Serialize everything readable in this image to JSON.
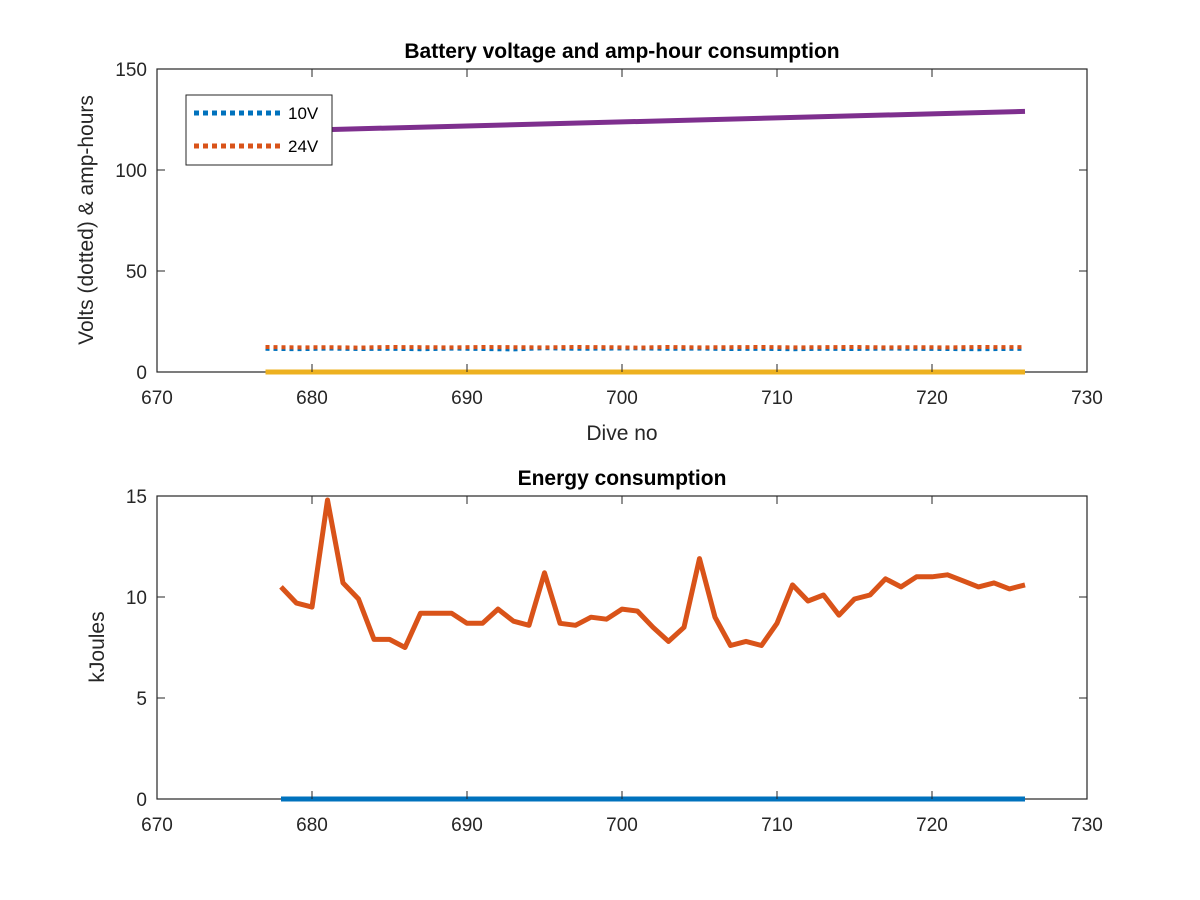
{
  "chart_data": [
    {
      "type": "line",
      "title": "Battery voltage and amp-hour consumption",
      "xlabel": "Dive no",
      "ylabel": "Volts (dotted) & amp-hours",
      "xlim": [
        670,
        730
      ],
      "ylim": [
        0,
        150
      ],
      "xticks": [
        "670",
        "680",
        "690",
        "700",
        "710",
        "720",
        "730"
      ],
      "yticks": [
        "0",
        "50",
        "100",
        "150"
      ],
      "grid": false,
      "legend_position": "top-left",
      "series": [
        {
          "name": "10V",
          "style": "dotted",
          "color": "#0072BD",
          "x": [
            677,
            679,
            681,
            683,
            685,
            687,
            689,
            691,
            693,
            695,
            697,
            699,
            701,
            703,
            705,
            707,
            709,
            711,
            713,
            715,
            717,
            719,
            721,
            723,
            726
          ],
          "y": [
            11.5,
            11.3,
            11.6,
            11.4,
            11.5,
            11.3,
            11.6,
            11.4,
            11.2,
            11.8,
            11.5,
            11.6,
            11.7,
            11.5,
            11.6,
            11.4,
            11.5,
            11.3,
            11.5,
            11.4,
            11.6,
            11.5,
            11.4,
            11.3,
            11.5
          ]
        },
        {
          "name": "24V",
          "style": "dotted",
          "color": "#D95319",
          "x": [
            677,
            679,
            681,
            683,
            685,
            687,
            689,
            691,
            693,
            695,
            697,
            699,
            701,
            703,
            705,
            707,
            709,
            711,
            713,
            715,
            717,
            719,
            721,
            723,
            726
          ],
          "y": [
            12.4,
            12.2,
            12.3,
            12.1,
            12.4,
            12.3,
            12.2,
            12.4,
            12.3,
            12.2,
            12.4,
            12.3,
            12.1,
            12.4,
            12.2,
            12.3,
            12.4,
            12.2,
            12.3,
            12.4,
            12.2,
            12.3,
            12.2,
            12.4,
            12.3
          ]
        },
        {
          "style": "solid",
          "color": "#7E2F8E",
          "x": [
            681,
            726
          ],
          "y": [
            120,
            129
          ]
        },
        {
          "style": "solid",
          "color": "#EDB120",
          "x": [
            677,
            726
          ],
          "y": [
            0,
            0
          ]
        }
      ]
    },
    {
      "type": "line",
      "title": "Energy consumption",
      "xlabel": "",
      "ylabel": "kJoules",
      "xlim": [
        670,
        730
      ],
      "ylim": [
        0,
        15
      ],
      "xticks": [
        "670",
        "680",
        "690",
        "700",
        "710",
        "720",
        "730"
      ],
      "yticks": [
        "0",
        "5",
        "10",
        "15"
      ],
      "grid": false,
      "series": [
        {
          "style": "solid",
          "color": "#D95319",
          "x": [
            678,
            679,
            680,
            681,
            682,
            683,
            684,
            685,
            686,
            687,
            688,
            689,
            690,
            691,
            692,
            693,
            694,
            695,
            696,
            697,
            698,
            699,
            700,
            701,
            702,
            703,
            704,
            705,
            706,
            707,
            708,
            709,
            710,
            711,
            712,
            713,
            714,
            715,
            716,
            717,
            718,
            719,
            720,
            721,
            722,
            723,
            724,
            725,
            726
          ],
          "y": [
            10.5,
            9.7,
            9.5,
            14.8,
            10.7,
            9.9,
            7.9,
            7.9,
            7.5,
            9.2,
            9.2,
            9.2,
            8.7,
            8.7,
            9.4,
            8.8,
            8.6,
            11.2,
            8.7,
            8.6,
            9.0,
            8.9,
            9.4,
            9.3,
            8.5,
            7.8,
            8.5,
            11.9,
            9.0,
            7.6,
            7.8,
            7.6,
            8.7,
            10.6,
            9.8,
            10.1,
            9.1,
            9.9,
            10.1,
            10.9,
            10.5,
            11.0,
            11.0,
            11.1,
            10.8,
            10.5,
            10.7,
            10.4,
            10.6
          ]
        },
        {
          "style": "solid",
          "color": "#0072BD",
          "x": [
            678,
            726
          ],
          "y": [
            0,
            0
          ]
        }
      ]
    }
  ]
}
